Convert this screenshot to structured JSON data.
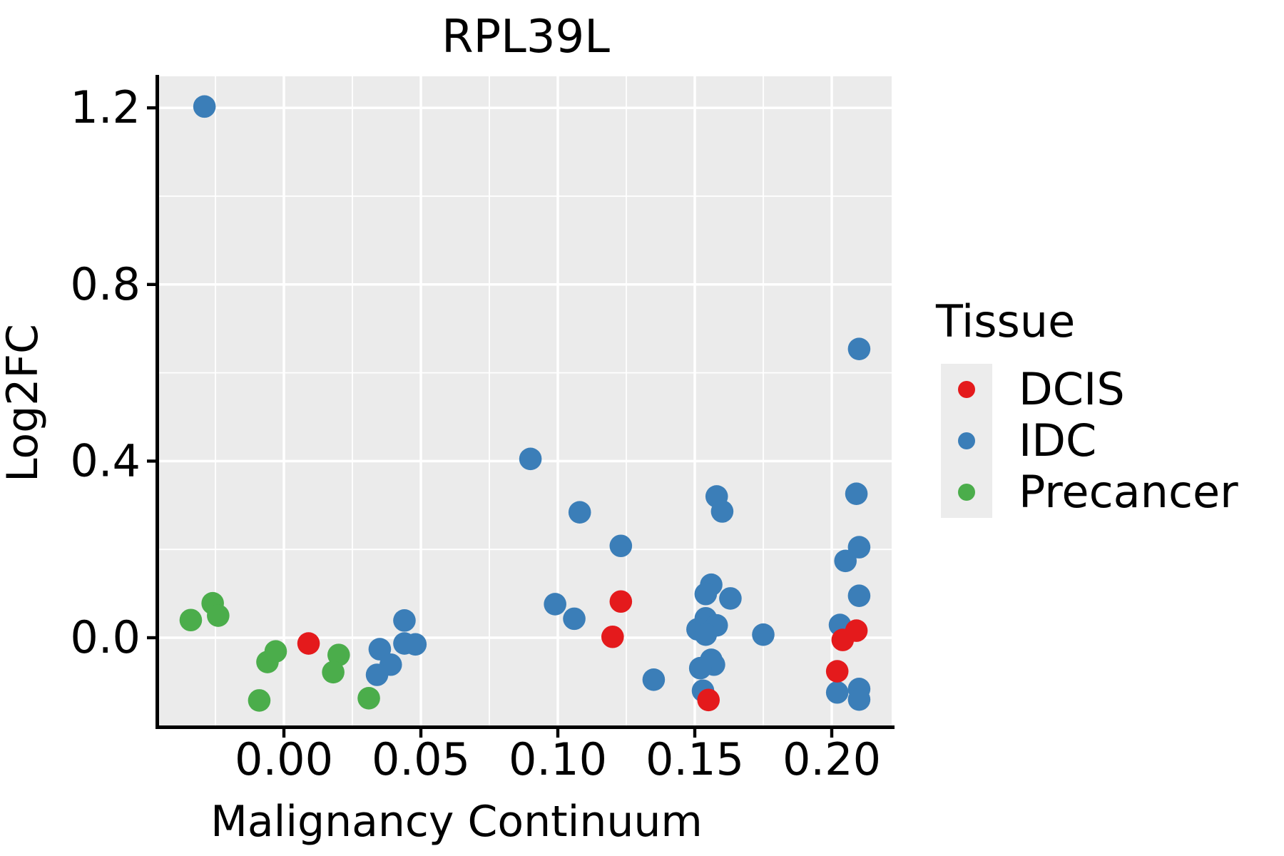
{
  "chart_data": {
    "type": "scatter",
    "title": "RPL39L",
    "xlabel": "Malignancy Continuum",
    "ylabel": "Log2FC",
    "legend_title": "Tissue",
    "legend_position": "right",
    "grid": true,
    "xlim": [
      -0.046,
      0.222
    ],
    "ylim": [
      -0.203,
      1.271
    ],
    "x_ticks": [
      {
        "value": 0.0,
        "label": "0.00"
      },
      {
        "value": 0.05,
        "label": "0.05"
      },
      {
        "value": 0.1,
        "label": "0.10"
      },
      {
        "value": 0.15,
        "label": "0.15"
      },
      {
        "value": 0.2,
        "label": "0.20"
      }
    ],
    "y_ticks": [
      {
        "value": 0.0,
        "label": "0.0"
      },
      {
        "value": 0.4,
        "label": "0.4"
      },
      {
        "value": 0.8,
        "label": "0.8"
      },
      {
        "value": 1.2,
        "label": "1.2"
      }
    ],
    "x_minor_ticks": [
      -0.025,
      0.025,
      0.075,
      0.125,
      0.175
    ],
    "y_minor_ticks": [
      0.2,
      0.6,
      1.0
    ],
    "series": [
      {
        "name": "DCIS",
        "color": "#E41A1C",
        "points": [
          [
            0.009,
            -0.013
          ],
          [
            0.123,
            0.082
          ],
          [
            0.12,
            0.002
          ],
          [
            0.155,
            -0.141
          ],
          [
            0.209,
            0.016
          ],
          [
            0.204,
            -0.005
          ],
          [
            0.202,
            -0.076
          ]
        ]
      },
      {
        "name": "IDC",
        "color": "#3B7EB8",
        "points": [
          [
            -0.029,
            1.203
          ],
          [
            0.044,
            0.039
          ],
          [
            0.044,
            -0.013
          ],
          [
            0.048,
            -0.015
          ],
          [
            0.035,
            -0.026
          ],
          [
            0.039,
            -0.061
          ],
          [
            0.034,
            -0.084
          ],
          [
            0.09,
            0.405
          ],
          [
            0.108,
            0.284
          ],
          [
            0.123,
            0.208
          ],
          [
            0.099,
            0.076
          ],
          [
            0.106,
            0.043
          ],
          [
            0.135,
            -0.095
          ],
          [
            0.158,
            0.32
          ],
          [
            0.16,
            0.286
          ],
          [
            0.156,
            0.12
          ],
          [
            0.154,
            0.099
          ],
          [
            0.163,
            0.089
          ],
          [
            0.154,
            0.044
          ],
          [
            0.158,
            0.028
          ],
          [
            0.151,
            0.019
          ],
          [
            0.154,
            0.007
          ],
          [
            0.175,
            0.007
          ],
          [
            0.156,
            -0.05
          ],
          [
            0.157,
            -0.061
          ],
          [
            0.152,
            -0.069
          ],
          [
            0.153,
            -0.12
          ],
          [
            0.21,
            0.654
          ],
          [
            0.209,
            0.326
          ],
          [
            0.21,
            0.205
          ],
          [
            0.205,
            0.174
          ],
          [
            0.21,
            0.095
          ],
          [
            0.203,
            0.029
          ],
          [
            0.202,
            -0.124
          ],
          [
            0.21,
            -0.116
          ],
          [
            0.21,
            -0.14
          ]
        ]
      },
      {
        "name": "Precancer",
        "color": "#4BAD4B",
        "points": [
          [
            -0.034,
            0.04
          ],
          [
            -0.026,
            0.078
          ],
          [
            -0.024,
            0.05
          ],
          [
            -0.006,
            -0.055
          ],
          [
            -0.003,
            -0.031
          ],
          [
            -0.009,
            -0.142
          ],
          [
            0.02,
            -0.039
          ],
          [
            0.018,
            -0.078
          ],
          [
            0.031,
            -0.137
          ]
        ]
      }
    ],
    "style": {
      "panel_background": "#EBEBEB",
      "grid_color": "#FFFFFF",
      "axis_color": "#000000",
      "legend_key_background": "#ECECEC",
      "text_color": "#000000"
    }
  }
}
